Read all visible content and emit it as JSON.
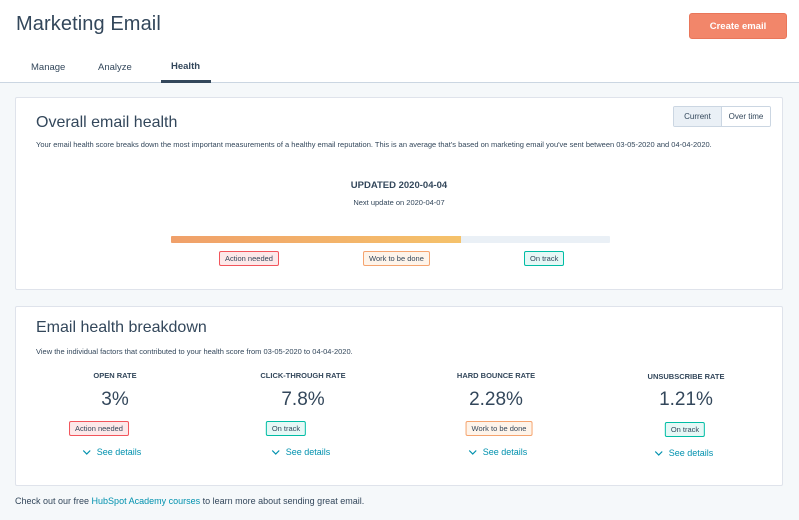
{
  "header": {
    "title": "Marketing Email",
    "create_button": "Create email",
    "tabs": [
      {
        "label": "Manage"
      },
      {
        "label": "Analyze"
      },
      {
        "label": "Health",
        "active": true
      }
    ]
  },
  "overall": {
    "title": "Overall email health",
    "description": "Your email health score breaks down the most important measurements of a healthy email reputation. This is an average that's based on marketing email you've sent between 03-05-2020 and 04-04-2020.",
    "toggle": {
      "current": "Current",
      "over_time": "Over time",
      "selected": "Current"
    },
    "updated": "UPDATED 2020-04-04",
    "next_update": "Next update on 2020-04-07",
    "health_level": 0.66,
    "legend": [
      "Action needed",
      "Work to be done",
      "On track"
    ]
  },
  "breakdown": {
    "title": "Email health breakdown",
    "description": "View the individual factors that contributed to your health score from 03-05-2020 to 04-04-2020.",
    "metrics": [
      {
        "label": "OPEN RATE",
        "value": "3%",
        "status": "Action needed",
        "link": "See details"
      },
      {
        "label": "CLICK-THROUGH RATE",
        "value": "7.8%",
        "status": "On track",
        "link": "See details"
      },
      {
        "label": "HARD BOUNCE RATE",
        "value": "2.28%",
        "status": "Work to be done",
        "link": "See details"
      },
      {
        "label": "UNSUBSCRIBE RATE",
        "value": "1.21%",
        "status": "On track",
        "link": "See details"
      }
    ]
  },
  "footer": {
    "prefix": "Check out our free ",
    "link": "HubSpot Academy courses",
    "suffix": " to learn more about sending great email."
  },
  "colors": {
    "accent": "#f2866a",
    "link": "#0091ae",
    "action_needed": "#f2545b",
    "work_to_be_done": "#f5a46f",
    "on_track": "#00bda5"
  }
}
